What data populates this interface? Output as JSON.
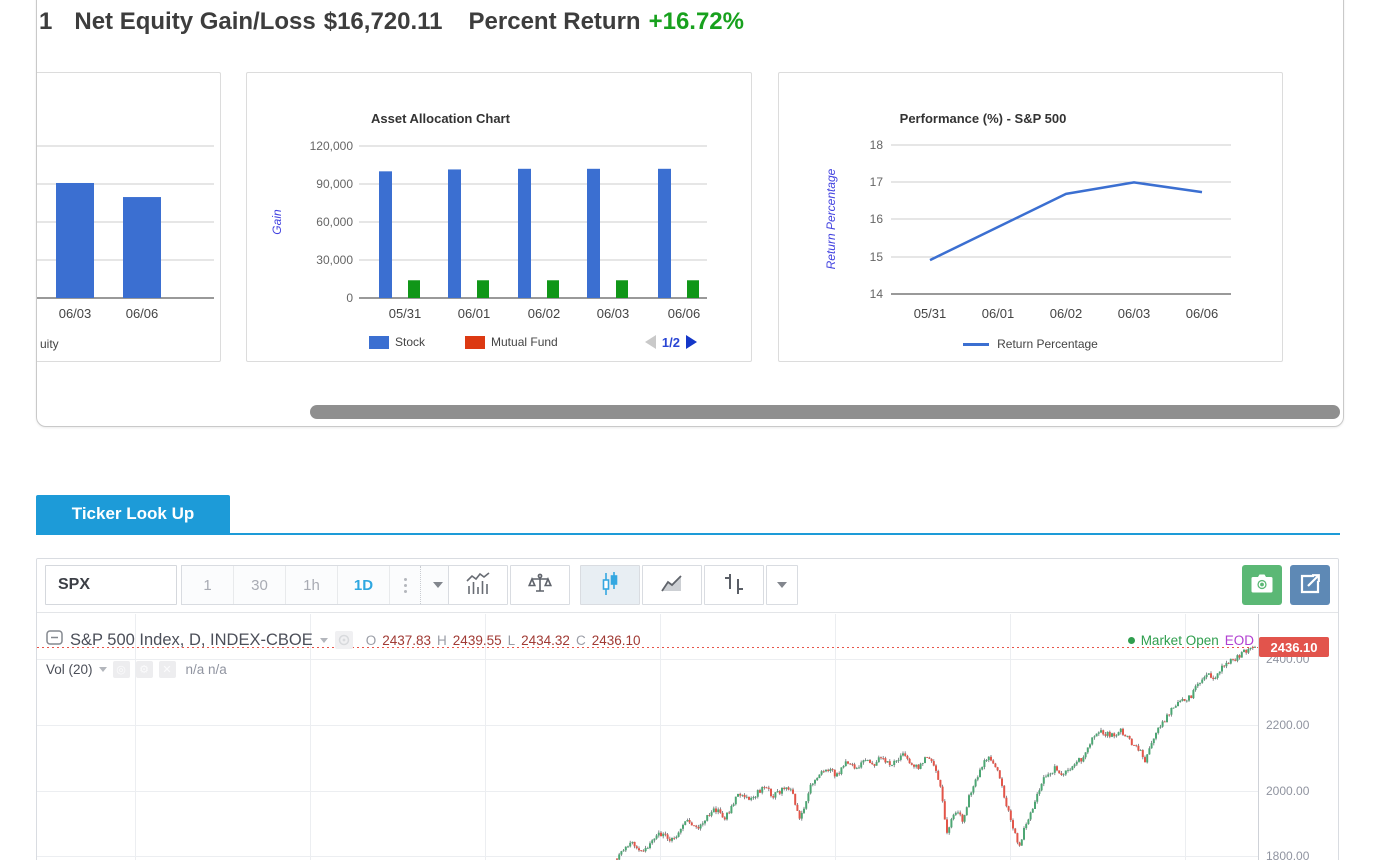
{
  "header": {
    "prefix": "1",
    "net_equity_label": "Net Equity Gain/Loss",
    "net_equity_value": "$16,720.11",
    "percent_return_label": "Percent Return",
    "percent_return_value": "+16.72%",
    "percent_color": "#18a11e"
  },
  "chart_data": [
    {
      "type": "bar",
      "title": "",
      "categories": [
        "06/03",
        "06/06"
      ],
      "values": [
        90800,
        79700
      ],
      "ylim": [
        0,
        120000
      ],
      "color": "#3b6fd1",
      "legend_partial": "uity",
      "note": "left edge of card cropped by container scroll"
    },
    {
      "type": "bar",
      "title": "Asset Allocation Chart",
      "ylabel": "Gain",
      "categories": [
        "05/31",
        "06/01",
        "06/02",
        "06/03",
        "06/06"
      ],
      "yticks": [
        "120,000",
        "90,000",
        "60,000",
        "30,000",
        "0"
      ],
      "ylim": [
        0,
        120000
      ],
      "series": [
        {
          "name": "Stock",
          "color": "#3b6fd1",
          "values": [
            100000,
            101500,
            102000,
            102000,
            102000
          ]
        },
        {
          "name": "Mutual Fund",
          "color": "#dc3912",
          "values": [
            0,
            0,
            0,
            0,
            0
          ]
        },
        {
          "name": "",
          "color": "#109618",
          "values": [
            14000,
            14000,
            14000,
            14000,
            14000
          ]
        }
      ],
      "pagination": "1/2",
      "legend_position": "bottom"
    },
    {
      "type": "line",
      "title": "Performance (%) - S&P 500",
      "ylabel": "Return Percentage",
      "categories": [
        "05/31",
        "06/01",
        "06/02",
        "06/03",
        "06/06"
      ],
      "values": [
        14.91,
        15.8,
        16.69,
        17.0,
        16.74
      ],
      "yticks": [
        "18",
        "17",
        "16",
        "15",
        "14"
      ],
      "ylim": [
        14,
        18
      ],
      "color": "#3b6fd1",
      "legend": "Return Percentage"
    },
    {
      "type": "candlestick",
      "symbol": "SPX",
      "title": "S&P 500 Index, D, INDEX-CBOE",
      "open": 2437.83,
      "high": 2439.55,
      "low": 2434.32,
      "close": 2436.1,
      "y_axis": [
        2400,
        2200,
        2000,
        1800
      ],
      "axis_ticks": [
        "2400.00",
        "2200.00",
        "2000.00",
        "1800.00"
      ],
      "up_color": "#4ca673",
      "down_color": "#e25549",
      "price_path": [
        [
          0.475,
          1795
        ],
        [
          0.487,
          1838
        ],
        [
          0.497,
          1818
        ],
        [
          0.51,
          1872
        ],
        [
          0.52,
          1850
        ],
        [
          0.533,
          1910
        ],
        [
          0.543,
          1888
        ],
        [
          0.555,
          1948
        ],
        [
          0.563,
          1912
        ],
        [
          0.575,
          1992
        ],
        [
          0.585,
          1975
        ],
        [
          0.595,
          2012
        ],
        [
          0.603,
          1985
        ],
        [
          0.612,
          2008
        ],
        [
          0.618,
          1998
        ],
        [
          0.625,
          1905
        ],
        [
          0.633,
          2012
        ],
        [
          0.64,
          2050
        ],
        [
          0.648,
          2064
        ],
        [
          0.655,
          2045
        ],
        [
          0.662,
          2090
        ],
        [
          0.67,
          2065
        ],
        [
          0.678,
          2098
        ],
        [
          0.685,
          2075
        ],
        [
          0.692,
          2102
        ],
        [
          0.7,
          2078
        ],
        [
          0.708,
          2108
        ],
        [
          0.715,
          2086
        ],
        [
          0.722,
          2064
        ],
        [
          0.728,
          2098
        ],
        [
          0.735,
          2080
        ],
        [
          0.741,
          1995
        ],
        [
          0.745,
          1866
        ],
        [
          0.752,
          1940
        ],
        [
          0.758,
          1910
        ],
        [
          0.766,
          2012
        ],
        [
          0.774,
          2078
        ],
        [
          0.781,
          2098
        ],
        [
          0.788,
          2048
        ],
        [
          0.794,
          1952
        ],
        [
          0.8,
          1885
        ],
        [
          0.804,
          1814
        ],
        [
          0.81,
          1902
        ],
        [
          0.818,
          1972
        ],
        [
          0.826,
          2047
        ],
        [
          0.834,
          2066
        ],
        [
          0.841,
          2052
        ],
        [
          0.848,
          2078
        ],
        [
          0.856,
          2098
        ],
        [
          0.864,
          2162
        ],
        [
          0.872,
          2176
        ],
        [
          0.88,
          2168
        ],
        [
          0.888,
          2182
        ],
        [
          0.895,
          2152
        ],
        [
          0.902,
          2128
        ],
        [
          0.908,
          2088
        ],
        [
          0.915,
          2168
        ],
        [
          0.922,
          2208
        ],
        [
          0.93,
          2252
        ],
        [
          0.937,
          2272
        ],
        [
          0.944,
          2282
        ],
        [
          0.952,
          2332
        ],
        [
          0.958,
          2356
        ],
        [
          0.964,
          2342
        ],
        [
          0.971,
          2382
        ],
        [
          0.978,
          2396
        ],
        [
          0.985,
          2412
        ],
        [
          0.991,
          2426
        ],
        [
          0.997,
          2436
        ],
        [
          1.0,
          2436
        ]
      ]
    }
  ],
  "ticker": {
    "tab_label": "Ticker Look Up",
    "symbol": "SPX",
    "intervals": [
      "1",
      "30",
      "1h",
      "1D"
    ],
    "active_interval": "1D",
    "ohlc": [
      {
        "k": "O",
        "v": "2437.83"
      },
      {
        "k": "H",
        "v": "2439.55"
      },
      {
        "k": "L",
        "v": "2434.32"
      },
      {
        "k": "C",
        "v": "2436.10"
      }
    ],
    "market_status": "Market Open",
    "eod_label": "EOD",
    "vol_label": "Vol (20)",
    "vol_values": "n/a n/a",
    "price_label": "2436.10"
  }
}
